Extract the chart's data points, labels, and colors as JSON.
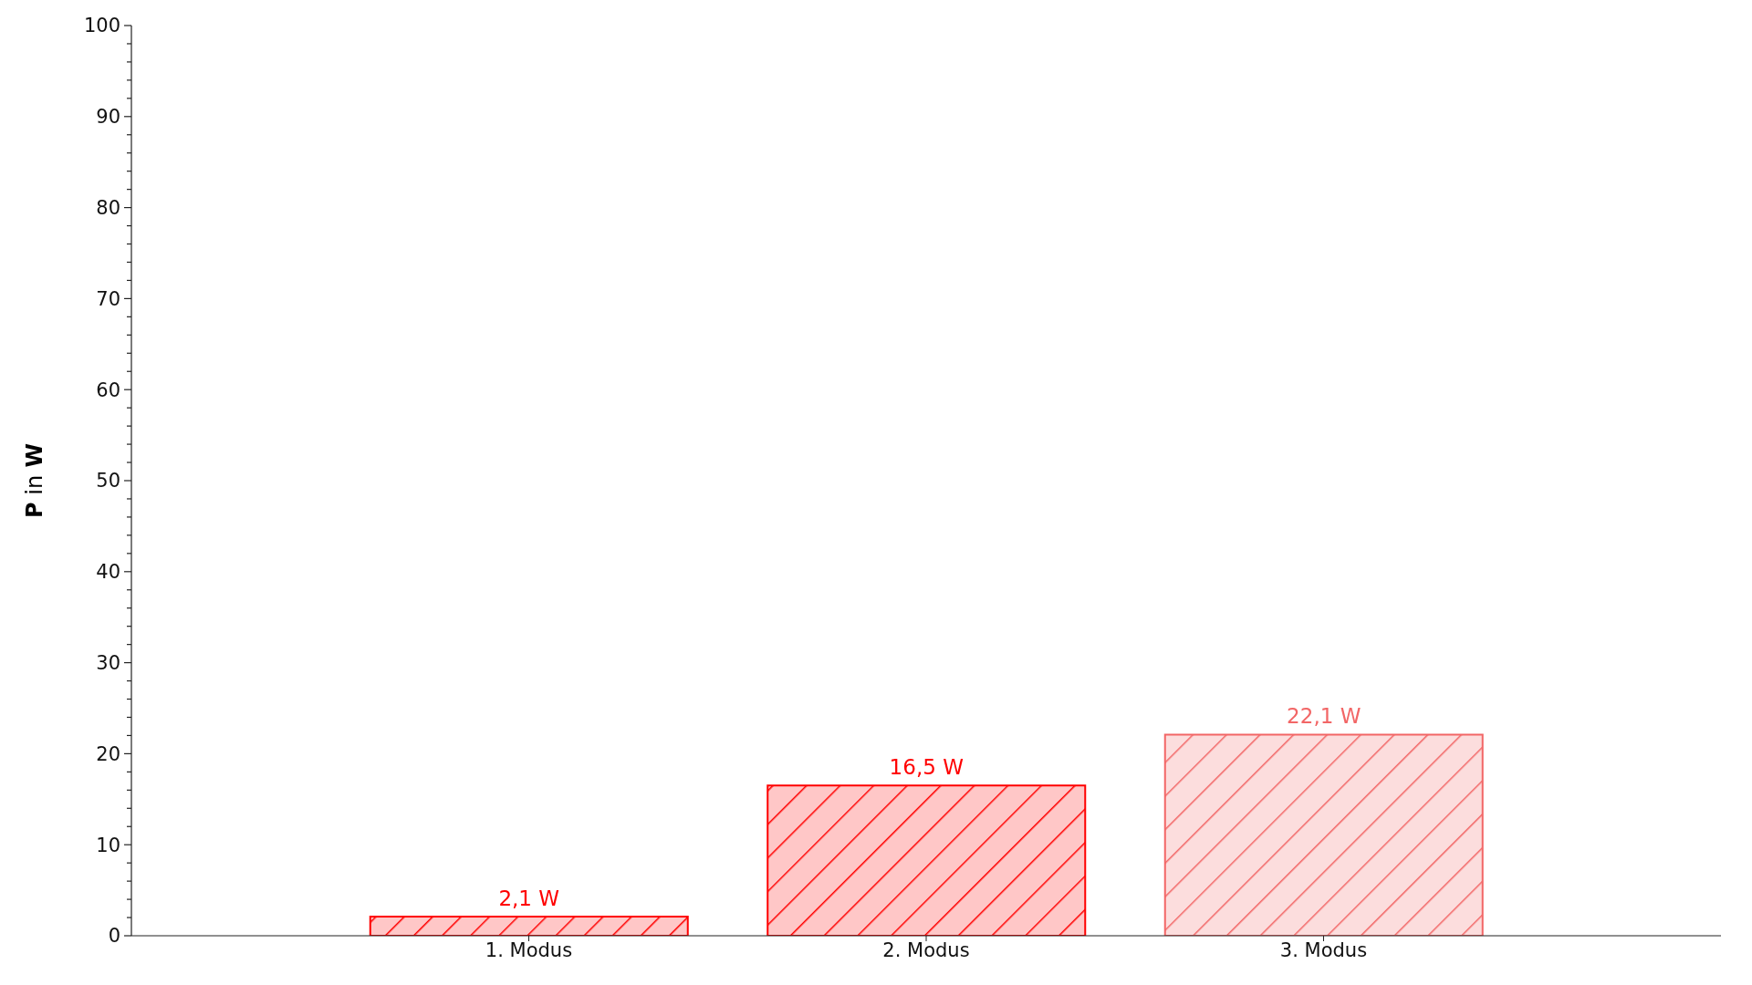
{
  "chart_data": {
    "type": "bar",
    "ylabel": "P in W",
    "categories": [
      null,
      "1. Modus",
      "2. Modus",
      "3. Modus",
      null
    ],
    "values": [
      null,
      2.1,
      16.5,
      22.1,
      null
    ],
    "colors": [
      "#ff0000",
      "#ff0000",
      "#ff0000",
      "#f26666",
      "#ff0000"
    ],
    "value_labels": [
      null,
      "2,1 W",
      "16,5 W",
      "22,1 W",
      null
    ],
    "ylim": [
      0,
      100
    ],
    "yticks": [
      0,
      {
        "value": 2,
        "label": null
      },
      {
        "value": 4,
        "label": null
      },
      {
        "value": 6,
        "label": null
      },
      {
        "value": 8,
        "label": null
      },
      10,
      {
        "value": 12,
        "label": null
      },
      {
        "value": 14,
        "label": null
      },
      {
        "value": 16,
        "label": null
      },
      {
        "value": 18,
        "label": null
      },
      20,
      {
        "value": 22,
        "label": null
      },
      {
        "value": 24,
        "label": null
      },
      {
        "value": 26,
        "label": null
      },
      {
        "value": 28,
        "label": null
      },
      30,
      {
        "value": 32,
        "label": null
      },
      {
        "value": 34,
        "label": null
      },
      {
        "value": 36,
        "label": null
      },
      {
        "value": 38,
        "label": null
      },
      40,
      {
        "value": 42,
        "label": null
      },
      {
        "value": 44,
        "label": null
      },
      {
        "value": 46,
        "label": null
      },
      {
        "value": 48,
        "label": null
      },
      50,
      {
        "value": 52,
        "label": null
      },
      {
        "value": 54,
        "label": null
      },
      {
        "value": 56,
        "label": null
      },
      {
        "value": 58,
        "label": null
      },
      60,
      {
        "value": 62,
        "label": null
      },
      {
        "value": 64,
        "label": null
      },
      {
        "value": 66,
        "label": null
      },
      {
        "value": 68,
        "label": null
      },
      70,
      {
        "value": 72,
        "label": null
      },
      {
        "value": 74,
        "label": null
      },
      {
        "value": 76,
        "label": null
      },
      {
        "value": 78,
        "label": null
      },
      80,
      {
        "value": 82,
        "label": null
      },
      {
        "value": 84,
        "label": null
      },
      {
        "value": 86,
        "label": null
      },
      {
        "value": 88,
        "label": null
      },
      90,
      {
        "value": 92,
        "label": null
      },
      {
        "value": 94,
        "label": null
      },
      {
        "value": 96,
        "label": null
      },
      {
        "value": 98,
        "label": null
      },
      100
    ],
    "grid": false,
    "legend": false
  }
}
